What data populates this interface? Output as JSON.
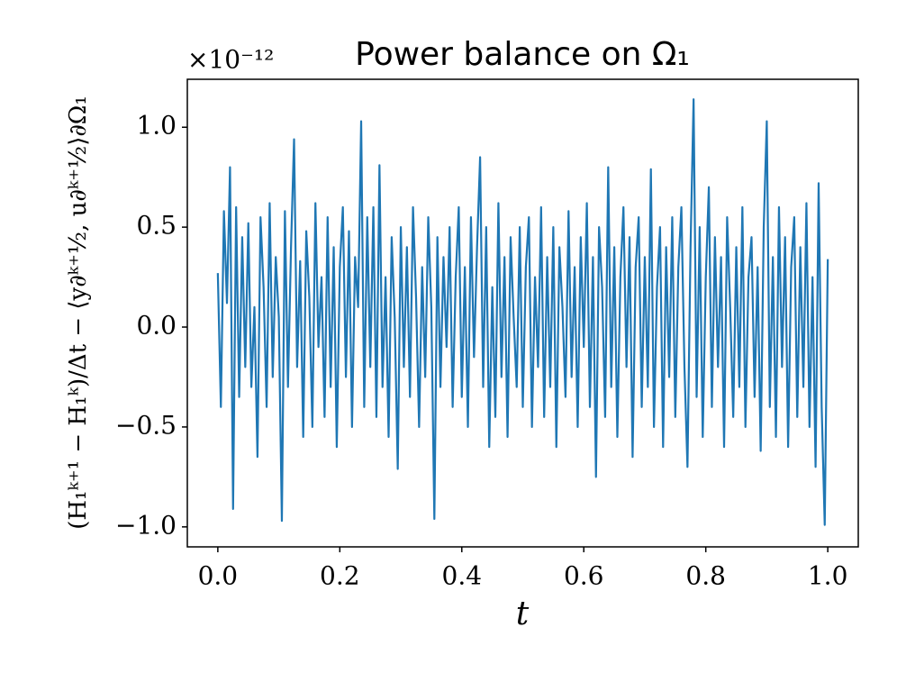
{
  "chart_data": {
    "type": "line",
    "title": "Power balance on Ω₁",
    "offset_text": "×10⁻¹²",
    "xlabel": "t",
    "ylabel": "(H₁ᵏ⁺¹ − H₁ᵏ)/Δt − ⟨y∂ᵏ⁺½, u∂ᵏ⁺½⟩∂Ω₁",
    "x": [
      0,
      0.005,
      0.01,
      0.015,
      0.02,
      0.025,
      0.03,
      0.035,
      0.04,
      0.045,
      0.05,
      0.055,
      0.06,
      0.065,
      0.07,
      0.075,
      0.08,
      0.085,
      0.09,
      0.095,
      0.1,
      0.105,
      0.11,
      0.115,
      0.12,
      0.125,
      0.13,
      0.135,
      0.14,
      0.145,
      0.15,
      0.155,
      0.16,
      0.165,
      0.17,
      0.175,
      0.18,
      0.185,
      0.19,
      0.195,
      0.2,
      0.205,
      0.21,
      0.215,
      0.22,
      0.225,
      0.23,
      0.235,
      0.24,
      0.245,
      0.25,
      0.255,
      0.26,
      0.265,
      0.27,
      0.275,
      0.28,
      0.285,
      0.29,
      0.295,
      0.3,
      0.305,
      0.31,
      0.315,
      0.32,
      0.325,
      0.33,
      0.335,
      0.34,
      0.345,
      0.35,
      0.355,
      0.36,
      0.365,
      0.37,
      0.375,
      0.38,
      0.385,
      0.39,
      0.395,
      0.4,
      0.405,
      0.41,
      0.415,
      0.42,
      0.425,
      0.43,
      0.435,
      0.44,
      0.445,
      0.45,
      0.455,
      0.46,
      0.465,
      0.47,
      0.475,
      0.48,
      0.485,
      0.49,
      0.495,
      0.5,
      0.505,
      0.51,
      0.515,
      0.52,
      0.525,
      0.53,
      0.535,
      0.54,
      0.545,
      0.55,
      0.555,
      0.56,
      0.565,
      0.57,
      0.575,
      0.58,
      0.585,
      0.59,
      0.595,
      0.6,
      0.605,
      0.61,
      0.615,
      0.62,
      0.625,
      0.63,
      0.635,
      0.64,
      0.645,
      0.65,
      0.655,
      0.66,
      0.665,
      0.67,
      0.675,
      0.68,
      0.685,
      0.69,
      0.695,
      0.7,
      0.705,
      0.71,
      0.715,
      0.72,
      0.725,
      0.73,
      0.735,
      0.74,
      0.745,
      0.75,
      0.755,
      0.76,
      0.765,
      0.77,
      0.775,
      0.78,
      0.785,
      0.79,
      0.795,
      0.8,
      0.805,
      0.81,
      0.815,
      0.82,
      0.825,
      0.83,
      0.835,
      0.84,
      0.845,
      0.85,
      0.855,
      0.86,
      0.865,
      0.87,
      0.875,
      0.88,
      0.885,
      0.89,
      0.895,
      0.9,
      0.905,
      0.91,
      0.915,
      0.92,
      0.925,
      0.93,
      0.935,
      0.94,
      0.945,
      0.95,
      0.955,
      0.96,
      0.965,
      0.97,
      0.975,
      0.98,
      0.985,
      0.99,
      0.995,
      1.0
    ],
    "series": [
      {
        "color": "#1f77b4",
        "values": [
          0.27,
          -0.4,
          0.58,
          0.12,
          0.8,
          -0.91,
          0.6,
          -0.35,
          0.45,
          -0.2,
          0.52,
          -0.3,
          0.1,
          -0.65,
          0.55,
          0.2,
          -0.4,
          0.62,
          -0.25,
          0.35,
          0.05,
          -0.97,
          0.58,
          -0.3,
          0.4,
          0.94,
          -0.2,
          0.33,
          -0.55,
          0.48,
          0.15,
          -0.5,
          0.62,
          -0.1,
          0.25,
          -0.45,
          0.55,
          -0.3,
          0.4,
          -0.6,
          0.3,
          0.6,
          -0.25,
          0.48,
          -0.5,
          0.35,
          0.1,
          1.03,
          -0.4,
          0.55,
          -0.2,
          0.6,
          -0.45,
          0.81,
          -0.3,
          0.25,
          -0.55,
          0.45,
          0.05,
          -0.71,
          0.5,
          -0.2,
          0.4,
          -0.35,
          0.6,
          0.15,
          -0.5,
          0.3,
          -0.25,
          0.55,
          0.1,
          -0.96,
          0.45,
          -0.3,
          0.35,
          -0.1,
          0.5,
          -0.4,
          0.25,
          0.6,
          -0.35,
          0.3,
          -0.5,
          0.55,
          -0.15,
          0.4,
          0.85,
          -0.3,
          0.5,
          -0.6,
          0.2,
          -0.45,
          0.62,
          -0.25,
          0.35,
          -0.55,
          0.45,
          0.05,
          -0.3,
          0.5,
          -0.4,
          0.3,
          0.55,
          -0.5,
          0.25,
          -0.2,
          0.6,
          -0.45,
          0.35,
          -0.3,
          0.5,
          -0.6,
          0.4,
          0.1,
          -0.35,
          0.58,
          -0.25,
          0.3,
          -0.5,
          0.45,
          -0.1,
          0.62,
          -0.4,
          0.35,
          -0.75,
          0.5,
          0.2,
          -0.45,
          0.8,
          -0.3,
          0.4,
          -0.55,
          0.25,
          0.6,
          -0.2,
          0.45,
          -0.65,
          0.3,
          0.55,
          -0.4,
          0.35,
          -0.3,
          0.79,
          -0.5,
          0.2,
          0.5,
          -0.6,
          0.4,
          -0.25,
          0.55,
          -0.45,
          0.3,
          0.6,
          -0.2,
          -0.7,
          0.4,
          1.14,
          -0.35,
          0.5,
          -0.55,
          0.25,
          0.7,
          -0.4,
          0.45,
          -0.2,
          0.35,
          -0.6,
          0.55,
          0.1,
          -0.45,
          0.4,
          -0.3,
          0.6,
          -0.5,
          0.25,
          0.45,
          -0.35,
          0.3,
          -0.62,
          0.5,
          1.03,
          -0.4,
          0.35,
          -0.55,
          0.6,
          -0.2,
          0.45,
          -0.6,
          0.3,
          0.55,
          -0.45,
          0.4,
          -0.3,
          0.62,
          -0.5,
          0.25,
          -0.7,
          0.72,
          -0.4,
          -0.99,
          0.34
        ]
      }
    ],
    "xlim": [
      -0.05,
      1.05
    ],
    "ylim": [
      -1.1,
      1.24
    ],
    "xticks": [
      {
        "value": 0,
        "label": "0.0"
      },
      {
        "value": 0.2,
        "label": "0.2"
      },
      {
        "value": 0.4,
        "label": "0.4"
      },
      {
        "value": 0.6,
        "label": "0.6"
      },
      {
        "value": 0.8,
        "label": "0.8"
      },
      {
        "value": 1,
        "label": "1.0"
      }
    ],
    "yticks": [
      {
        "value": -1,
        "label": "−1.0"
      },
      {
        "value": -0.5,
        "label": "−0.5"
      },
      {
        "value": 0,
        "label": "0.0"
      },
      {
        "value": 0.5,
        "label": "0.5"
      },
      {
        "value": 1,
        "label": "1.0"
      }
    ],
    "grid": false
  }
}
